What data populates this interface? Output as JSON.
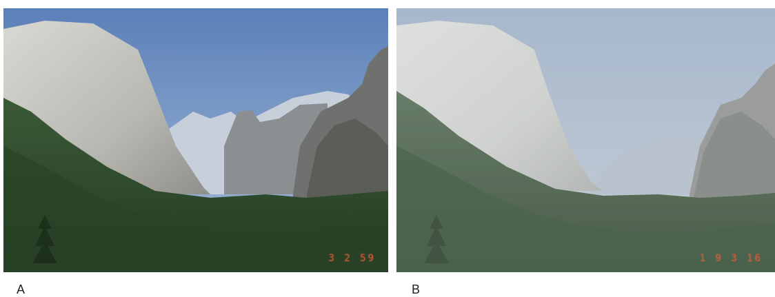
{
  "panels": [
    {
      "label": "A",
      "date_stamp": "3  2 59",
      "condition": "clear",
      "colors": {
        "sky_top": "#5b80b8",
        "sky_bottom": "#a9bedb",
        "rock": "#c9c9c4",
        "forest": "#2f4a2c"
      }
    },
    {
      "label": "B",
      "date_stamp": "1 9  3 16",
      "condition": "hazy",
      "colors": {
        "sky_top": "#9fb0c8",
        "sky_bottom": "#c4ccd6",
        "rock": "#d2d3d0",
        "forest": "#3d5a3c"
      }
    }
  ]
}
